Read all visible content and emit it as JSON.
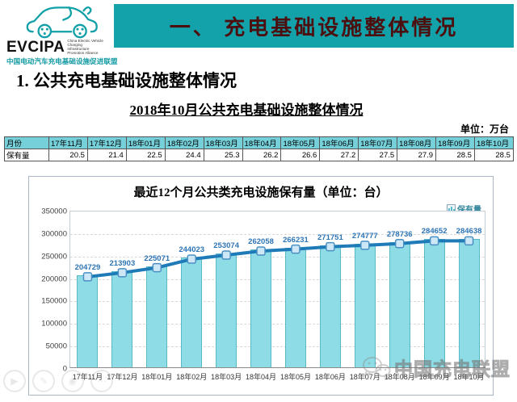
{
  "logo": {
    "abbr": "EVCIPA",
    "english_name": "China Electric Vehicle Charging Infrastructure Promotion Alliance",
    "chinese_name": "中国电动汽车充电基础设施促进联盟",
    "brand_color": "#12a0a8"
  },
  "banner": {
    "title": "一、 充电基础设施整体情况",
    "bg_color": "#14a2aa",
    "text_color": "#4c0f0f"
  },
  "section": {
    "heading": "1. 公共充电基础设施整体情况"
  },
  "table": {
    "title": "2018年10月公共充电基础设施整体情况",
    "unit_label": "单位：万台",
    "row_header": "月份",
    "row_label": "保有量",
    "columns": [
      "17年11月",
      "17年12月",
      "18年01月",
      "18年02月",
      "18年03月",
      "18年04月",
      "18年05月",
      "18年06月",
      "18年07月",
      "18年08月",
      "18年09月",
      "18年10月"
    ],
    "values": [
      "20.5",
      "21.4",
      "22.5",
      "24.4",
      "25.3",
      "26.2",
      "26.6",
      "27.2",
      "27.5",
      "27.9",
      "28.5",
      "28.5"
    ],
    "header_bg": "#76d0d9"
  },
  "chart_data": {
    "type": "bar",
    "overlay": "line",
    "title": "最近12个月公共类充电设施保有量（单位：台）",
    "legend": "保有量",
    "legend_position": "top-right",
    "categories": [
      "17年11月",
      "17年12月",
      "18年01月",
      "18年02月",
      "18年03月",
      "18年04月",
      "18年05月",
      "18年06月",
      "18年07月",
      "18年08月",
      "18年09月",
      "18年10月"
    ],
    "values": [
      204729,
      213903,
      225071,
      244023,
      253074,
      262058,
      266231,
      271751,
      274777,
      278736,
      284652,
      284638
    ],
    "ylim": [
      0,
      350000
    ],
    "yticks": [
      0,
      50000,
      100000,
      150000,
      200000,
      250000,
      300000,
      350000
    ],
    "grid": "dashed-horizontal",
    "bar_color": "#8edce6",
    "bar_border_color": "#58b9c7",
    "line_color": "#1f7ab8",
    "marker_fill": "#cde7f6",
    "marker_border": "#4a90c4",
    "label_color": "#2e75b6"
  },
  "watermark": {
    "text": "中国充电联盟"
  },
  "ghost_icons": [
    "play-icon",
    "edit-icon",
    "target-icon",
    "more-icon"
  ],
  "ghost_glyphs": [
    "▶",
    "✎",
    "◉",
    "⋯"
  ]
}
